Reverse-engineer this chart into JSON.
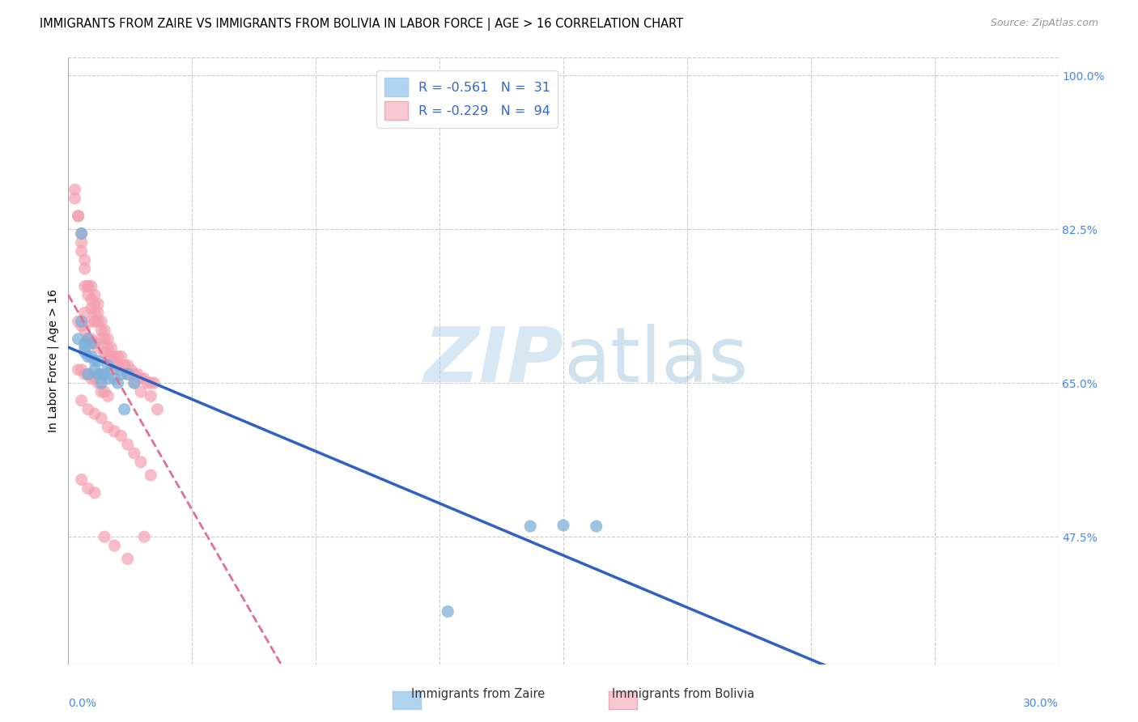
{
  "title": "IMMIGRANTS FROM ZAIRE VS IMMIGRANTS FROM BOLIVIA IN LABOR FORCE | AGE > 16 CORRELATION CHART",
  "source": "Source: ZipAtlas.com",
  "ylabel": "In Labor Force | Age > 16",
  "xmin": 0.0,
  "xmax": 0.3,
  "ymin": 0.33,
  "ymax": 1.02,
  "yticks": [
    0.475,
    0.65,
    0.825,
    1.0
  ],
  "ytick_labels": [
    "47.5%",
    "65.0%",
    "82.5%",
    "100.0%"
  ],
  "zaire_color": "#7EB0D8",
  "zaire_color_fill": "#AED4F0",
  "bolivia_color": "#F4A0B0",
  "bolivia_color_fill": "#F8C8D0",
  "zaire_trend_color": "#3060C0",
  "bolivia_trend_color": "#E07090",
  "bg_color": "#FFFFFF",
  "grid_color": "#CCCCCC",
  "title_fontsize": 10.5,
  "axis_label_fontsize": 10,
  "tick_fontsize": 10,
  "zaire_x": [
    0.003,
    0.004,
    0.004,
    0.005,
    0.005,
    0.005,
    0.006,
    0.006,
    0.006,
    0.007,
    0.007,
    0.008,
    0.008,
    0.009,
    0.009,
    0.01,
    0.01,
    0.011,
    0.012,
    0.012,
    0.013,
    0.014,
    0.015,
    0.016,
    0.017,
    0.018,
    0.02,
    0.14,
    0.15,
    0.16,
    0.115
  ],
  "zaire_y": [
    0.7,
    0.82,
    0.72,
    0.695,
    0.69,
    0.685,
    0.7,
    0.68,
    0.66,
    0.68,
    0.695,
    0.675,
    0.665,
    0.675,
    0.66,
    0.66,
    0.65,
    0.66,
    0.67,
    0.655,
    0.665,
    0.655,
    0.65,
    0.66,
    0.62,
    0.66,
    0.65,
    0.487,
    0.488,
    0.487,
    0.39
  ],
  "bolivia_x": [
    0.002,
    0.002,
    0.003,
    0.003,
    0.004,
    0.004,
    0.004,
    0.005,
    0.005,
    0.005,
    0.005,
    0.006,
    0.006,
    0.006,
    0.006,
    0.007,
    0.007,
    0.007,
    0.007,
    0.008,
    0.008,
    0.008,
    0.008,
    0.009,
    0.009,
    0.009,
    0.01,
    0.01,
    0.01,
    0.011,
    0.011,
    0.012,
    0.012,
    0.012,
    0.013,
    0.013,
    0.014,
    0.015,
    0.015,
    0.016,
    0.017,
    0.018,
    0.019,
    0.02,
    0.021,
    0.022,
    0.023,
    0.024,
    0.025,
    0.026,
    0.003,
    0.004,
    0.005,
    0.006,
    0.007,
    0.008,
    0.009,
    0.01,
    0.011,
    0.012,
    0.003,
    0.004,
    0.005,
    0.006,
    0.007,
    0.008,
    0.009,
    0.011,
    0.013,
    0.015,
    0.016,
    0.018,
    0.02,
    0.022,
    0.025,
    0.027,
    0.004,
    0.006,
    0.008,
    0.01,
    0.012,
    0.014,
    0.016,
    0.018,
    0.02,
    0.022,
    0.025,
    0.004,
    0.006,
    0.008,
    0.011,
    0.014,
    0.018,
    0.023
  ],
  "bolivia_y": [
    0.87,
    0.86,
    0.84,
    0.84,
    0.82,
    0.81,
    0.8,
    0.79,
    0.78,
    0.76,
    0.73,
    0.76,
    0.76,
    0.75,
    0.7,
    0.76,
    0.745,
    0.735,
    0.72,
    0.75,
    0.74,
    0.73,
    0.72,
    0.74,
    0.73,
    0.72,
    0.72,
    0.71,
    0.7,
    0.71,
    0.7,
    0.7,
    0.69,
    0.68,
    0.69,
    0.68,
    0.68,
    0.68,
    0.67,
    0.68,
    0.67,
    0.67,
    0.665,
    0.66,
    0.66,
    0.655,
    0.655,
    0.65,
    0.65,
    0.65,
    0.665,
    0.665,
    0.66,
    0.66,
    0.655,
    0.655,
    0.65,
    0.64,
    0.64,
    0.635,
    0.72,
    0.715,
    0.71,
    0.7,
    0.7,
    0.695,
    0.69,
    0.685,
    0.68,
    0.67,
    0.665,
    0.66,
    0.65,
    0.64,
    0.635,
    0.62,
    0.63,
    0.62,
    0.615,
    0.61,
    0.6,
    0.595,
    0.59,
    0.58,
    0.57,
    0.56,
    0.545,
    0.54,
    0.53,
    0.525,
    0.475,
    0.465,
    0.45,
    0.475
  ]
}
